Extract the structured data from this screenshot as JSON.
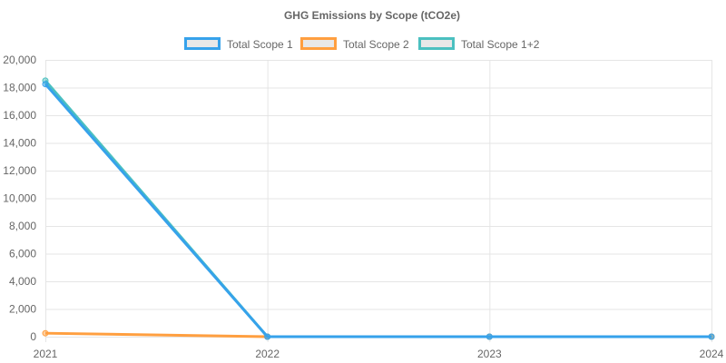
{
  "chart_data": {
    "type": "line",
    "title": "GHG Emissions by Scope (tCO2e)",
    "xlabel": "",
    "ylabel": "",
    "categories": [
      "2021",
      "2022",
      "2023",
      "2024"
    ],
    "ylim": [
      0,
      20000
    ],
    "yticks": [
      0,
      2000,
      4000,
      6000,
      8000,
      10000,
      12000,
      14000,
      16000,
      18000,
      20000
    ],
    "ytick_labels": [
      "0",
      "2,000",
      "4,000",
      "6,000",
      "8,000",
      "10,000",
      "12,000",
      "14,000",
      "16,000",
      "18,000",
      "20,000"
    ],
    "grid": true,
    "legend_position": "top",
    "series": [
      {
        "name": "Total Scope 1+2",
        "color": "#4bc0c0",
        "values": [
          18500,
          0,
          0,
          0
        ]
      },
      {
        "name": "Total Scope 2",
        "color": "#ff9f40",
        "values": [
          250,
          0,
          0,
          0
        ]
      },
      {
        "name": "Total Scope 1",
        "color": "#36a2eb",
        "values": [
          18250,
          0,
          0,
          0
        ]
      }
    ],
    "legend_order": [
      "Total Scope 1",
      "Total Scope 2",
      "Total Scope 1+2"
    ]
  }
}
